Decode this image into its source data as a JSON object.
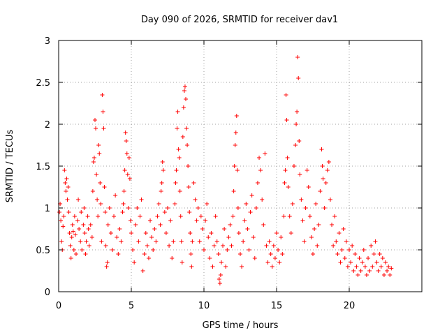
{
  "chart_data": {
    "type": "scatter",
    "title": "Day 090 of 2026, SRMTID for receiver dav1",
    "xlabel": "GPS time / hours",
    "ylabel": "SRMTID / TECUs",
    "xlim": [
      0,
      25
    ],
    "ylim": [
      0,
      3
    ],
    "xticks": [
      0,
      5,
      10,
      15,
      20
    ],
    "xtick_labels": [
      "0",
      "5",
      "10",
      "15",
      "20"
    ],
    "yticks": [
      0,
      0.5,
      1,
      1.5,
      2,
      2.5,
      3
    ],
    "ytick_labels": [
      "0",
      "0.5",
      "1",
      "1.5",
      "2",
      "2.5",
      "3"
    ],
    "grid": true,
    "marker": "+",
    "series": [
      {
        "name": "SRMTID",
        "color": "#ff0000",
        "points": [
          [
            0.05,
            0.95
          ],
          [
            0.1,
            1.05
          ],
          [
            0.15,
            0.85
          ],
          [
            0.2,
            0.6
          ],
          [
            0.25,
            0.5
          ],
          [
            0.3,
            0.78
          ],
          [
            0.35,
            0.9
          ],
          [
            0.4,
            1.45
          ],
          [
            0.45,
            1.3
          ],
          [
            0.5,
            1.2
          ],
          [
            0.55,
            1.35
          ],
          [
            0.6,
            1.1
          ],
          [
            0.65,
            1.25
          ],
          [
            0.7,
            0.95
          ],
          [
            0.75,
            0.7
          ],
          [
            0.8,
            0.55
          ],
          [
            0.85,
            0.4
          ],
          [
            0.9,
            0.65
          ],
          [
            0.95,
            0.8
          ],
          [
            1.0,
            0.72
          ],
          [
            1.05,
            0.5
          ],
          [
            1.1,
            0.9
          ],
          [
            1.15,
            0.68
          ],
          [
            1.2,
            0.45
          ],
          [
            1.3,
            0.85
          ],
          [
            1.35,
            1.1
          ],
          [
            1.4,
            0.75
          ],
          [
            1.5,
            0.6
          ],
          [
            1.55,
            0.95
          ],
          [
            1.6,
            0.5
          ],
          [
            1.7,
            0.8
          ],
          [
            1.75,
            1.0
          ],
          [
            1.8,
            0.7
          ],
          [
            1.85,
            0.45
          ],
          [
            1.9,
            0.6
          ],
          [
            2.0,
            0.9
          ],
          [
            2.05,
            0.75
          ],
          [
            2.1,
            0.55
          ],
          [
            2.2,
            0.8
          ],
          [
            2.3,
            0.65
          ],
          [
            2.35,
            1.2
          ],
          [
            2.4,
            1.55
          ],
          [
            2.45,
            1.6
          ],
          [
            2.5,
            2.05
          ],
          [
            2.55,
            1.95
          ],
          [
            2.6,
            1.4
          ],
          [
            2.65,
            1.1
          ],
          [
            2.7,
            0.9
          ],
          [
            2.75,
            1.75
          ],
          [
            2.8,
            1.65
          ],
          [
            2.85,
            1.3
          ],
          [
            2.9,
            1.05
          ],
          [
            2.95,
            0.6
          ],
          [
            3.0,
            2.35
          ],
          [
            3.05,
            2.15
          ],
          [
            3.1,
            1.95
          ],
          [
            3.15,
            1.25
          ],
          [
            3.2,
            0.95
          ],
          [
            3.25,
            0.55
          ],
          [
            3.3,
            0.3
          ],
          [
            3.35,
            0.35
          ],
          [
            3.4,
            0.8
          ],
          [
            3.5,
            1.0
          ],
          [
            3.6,
            0.7
          ],
          [
            3.7,
            0.5
          ],
          [
            3.8,
            0.9
          ],
          [
            3.9,
            1.15
          ],
          [
            4.0,
            0.65
          ],
          [
            4.1,
            0.45
          ],
          [
            4.2,
            0.75
          ],
          [
            4.3,
            0.6
          ],
          [
            4.4,
            0.95
          ],
          [
            4.45,
            1.05
          ],
          [
            4.5,
            1.2
          ],
          [
            4.55,
            1.45
          ],
          [
            4.6,
            1.9
          ],
          [
            4.65,
            1.8
          ],
          [
            4.7,
            1.65
          ],
          [
            4.75,
            1.4
          ],
          [
            4.8,
            1.0
          ],
          [
            4.85,
            1.6
          ],
          [
            4.9,
            1.35
          ],
          [
            4.95,
            0.85
          ],
          [
            5.0,
            0.7
          ],
          [
            5.1,
            0.5
          ],
          [
            5.2,
            0.35
          ],
          [
            5.3,
            0.8
          ],
          [
            5.4,
            1.0
          ],
          [
            5.5,
            0.6
          ],
          [
            5.6,
            0.9
          ],
          [
            5.7,
            1.1
          ],
          [
            5.8,
            0.25
          ],
          [
            5.9,
            0.45
          ],
          [
            6.0,
            0.7
          ],
          [
            6.1,
            0.55
          ],
          [
            6.2,
            0.4
          ],
          [
            6.3,
            0.85
          ],
          [
            6.4,
            0.65
          ],
          [
            6.5,
            0.5
          ],
          [
            6.6,
            0.75
          ],
          [
            6.7,
            0.6
          ],
          [
            6.8,
            0.9
          ],
          [
            6.9,
            1.05
          ],
          [
            7.0,
            0.8
          ],
          [
            7.05,
            1.2
          ],
          [
            7.1,
            1.3
          ],
          [
            7.15,
            1.55
          ],
          [
            7.2,
            1.45
          ],
          [
            7.3,
            0.95
          ],
          [
            7.4,
            0.7
          ],
          [
            7.5,
            1.0
          ],
          [
            7.6,
            0.55
          ],
          [
            7.7,
            0.85
          ],
          [
            7.8,
            0.4
          ],
          [
            7.9,
            0.6
          ],
          [
            8.0,
            1.05
          ],
          [
            8.05,
            1.3
          ],
          [
            8.1,
            1.45
          ],
          [
            8.15,
            1.95
          ],
          [
            8.2,
            2.15
          ],
          [
            8.25,
            1.7
          ],
          [
            8.3,
            1.6
          ],
          [
            8.35,
            1.2
          ],
          [
            8.4,
            0.9
          ],
          [
            8.45,
            0.6
          ],
          [
            8.5,
            0.35
          ],
          [
            8.55,
            1.85
          ],
          [
            8.6,
            2.2
          ],
          [
            8.65,
            2.4
          ],
          [
            8.7,
            2.45
          ],
          [
            8.75,
            2.3
          ],
          [
            8.8,
            1.95
          ],
          [
            8.85,
            1.75
          ],
          [
            8.9,
            1.5
          ],
          [
            8.95,
            1.25
          ],
          [
            9.0,
            0.95
          ],
          [
            9.05,
            0.7
          ],
          [
            9.1,
            0.45
          ],
          [
            9.15,
            0.3
          ],
          [
            9.2,
            0.6
          ],
          [
            9.3,
            1.3
          ],
          [
            9.4,
            1.1
          ],
          [
            9.5,
            0.85
          ],
          [
            9.6,
            1.0
          ],
          [
            9.7,
            0.6
          ],
          [
            9.8,
            0.9
          ],
          [
            9.9,
            0.75
          ],
          [
            10.0,
            0.5
          ],
          [
            10.1,
            0.85
          ],
          [
            10.2,
            1.05
          ],
          [
            10.3,
            0.65
          ],
          [
            10.4,
            0.4
          ],
          [
            10.5,
            0.7
          ],
          [
            10.6,
            0.3
          ],
          [
            10.7,
            0.55
          ],
          [
            10.8,
            0.9
          ],
          [
            10.9,
            0.6
          ],
          [
            11.0,
            0.45
          ],
          [
            11.05,
            0.15
          ],
          [
            11.1,
            0.1
          ],
          [
            11.15,
            0.2
          ],
          [
            11.2,
            0.35
          ],
          [
            11.3,
            0.55
          ],
          [
            11.4,
            0.75
          ],
          [
            11.5,
            0.3
          ],
          [
            11.6,
            0.5
          ],
          [
            11.7,
            0.65
          ],
          [
            11.8,
            0.8
          ],
          [
            11.9,
            0.55
          ],
          [
            12.0,
            0.9
          ],
          [
            12.05,
            1.2
          ],
          [
            12.1,
            1.5
          ],
          [
            12.15,
            1.75
          ],
          [
            12.2,
            1.9
          ],
          [
            12.25,
            2.1
          ],
          [
            12.3,
            1.45
          ],
          [
            12.35,
            1.0
          ],
          [
            12.4,
            0.7
          ],
          [
            12.5,
            0.45
          ],
          [
            12.6,
            0.3
          ],
          [
            12.7,
            0.6
          ],
          [
            12.8,
            0.85
          ],
          [
            12.9,
            1.05
          ],
          [
            13.0,
            0.75
          ],
          [
            13.1,
            0.5
          ],
          [
            13.2,
            0.95
          ],
          [
            13.3,
            1.15
          ],
          [
            13.4,
            0.65
          ],
          [
            13.5,
            0.4
          ],
          [
            13.6,
            1.0
          ],
          [
            13.7,
            1.3
          ],
          [
            13.8,
            1.6
          ],
          [
            13.9,
            1.45
          ],
          [
            14.0,
            1.1
          ],
          [
            14.1,
            0.8
          ],
          [
            14.2,
            1.65
          ],
          [
            14.3,
            0.55
          ],
          [
            14.4,
            0.35
          ],
          [
            14.5,
            0.6
          ],
          [
            14.6,
            0.45
          ],
          [
            14.7,
            0.3
          ],
          [
            14.8,
            0.55
          ],
          [
            14.9,
            0.4
          ],
          [
            15.0,
            0.7
          ],
          [
            15.1,
            0.5
          ],
          [
            15.2,
            0.35
          ],
          [
            15.3,
            0.65
          ],
          [
            15.4,
            0.45
          ],
          [
            15.5,
            0.9
          ],
          [
            15.55,
            1.3
          ],
          [
            15.6,
            1.45
          ],
          [
            15.65,
            2.35
          ],
          [
            15.7,
            2.05
          ],
          [
            15.75,
            1.6
          ],
          [
            15.8,
            1.25
          ],
          [
            15.9,
            0.9
          ],
          [
            16.0,
            0.7
          ],
          [
            16.1,
            1.05
          ],
          [
            16.2,
            1.5
          ],
          [
            16.3,
            1.75
          ],
          [
            16.35,
            2.0
          ],
          [
            16.4,
            2.15
          ],
          [
            16.45,
            2.8
          ],
          [
            16.5,
            2.55
          ],
          [
            16.55,
            1.8
          ],
          [
            16.6,
            1.4
          ],
          [
            16.7,
            1.1
          ],
          [
            16.8,
            0.85
          ],
          [
            16.9,
            0.6
          ],
          [
            17.0,
            1.0
          ],
          [
            17.1,
            1.45
          ],
          [
            17.2,
            1.25
          ],
          [
            17.3,
            0.9
          ],
          [
            17.4,
            0.65
          ],
          [
            17.5,
            0.45
          ],
          [
            17.6,
            0.75
          ],
          [
            17.7,
            1.05
          ],
          [
            17.8,
            0.55
          ],
          [
            17.9,
            0.8
          ],
          [
            18.0,
            1.2
          ],
          [
            18.1,
            1.7
          ],
          [
            18.15,
            1.5
          ],
          [
            18.2,
            1.35
          ],
          [
            18.3,
            1.0
          ],
          [
            18.4,
            1.3
          ],
          [
            18.5,
            1.45
          ],
          [
            18.6,
            1.55
          ],
          [
            18.7,
            1.1
          ],
          [
            18.8,
            0.8
          ],
          [
            18.9,
            0.55
          ],
          [
            19.0,
            0.9
          ],
          [
            19.1,
            0.6
          ],
          [
            19.2,
            0.45
          ],
          [
            19.3,
            0.7
          ],
          [
            19.4,
            0.35
          ],
          [
            19.5,
            0.5
          ],
          [
            19.6,
            0.75
          ],
          [
            19.7,
            0.4
          ],
          [
            19.8,
            0.6
          ],
          [
            19.9,
            0.3
          ],
          [
            20.0,
            0.5
          ],
          [
            20.1,
            0.35
          ],
          [
            20.2,
            0.55
          ],
          [
            20.3,
            0.25
          ],
          [
            20.4,
            0.45
          ],
          [
            20.5,
            0.3
          ],
          [
            20.6,
            0.2
          ],
          [
            20.7,
            0.4
          ],
          [
            20.8,
            0.25
          ],
          [
            20.9,
            0.35
          ],
          [
            21.0,
            0.5
          ],
          [
            21.1,
            0.3
          ],
          [
            21.2,
            0.2
          ],
          [
            21.3,
            0.4
          ],
          [
            21.4,
            0.25
          ],
          [
            21.5,
            0.55
          ],
          [
            21.6,
            0.3
          ],
          [
            21.7,
            0.45
          ],
          [
            21.8,
            0.6
          ],
          [
            21.9,
            0.35
          ],
          [
            22.0,
            0.25
          ],
          [
            22.1,
            0.45
          ],
          [
            22.2,
            0.3
          ],
          [
            22.3,
            0.4
          ],
          [
            22.4,
            0.2
          ],
          [
            22.5,
            0.35
          ],
          [
            22.6,
            0.25
          ],
          [
            22.7,
            0.3
          ],
          [
            22.8,
            0.2
          ],
          [
            22.9,
            0.28
          ]
        ]
      }
    ]
  }
}
